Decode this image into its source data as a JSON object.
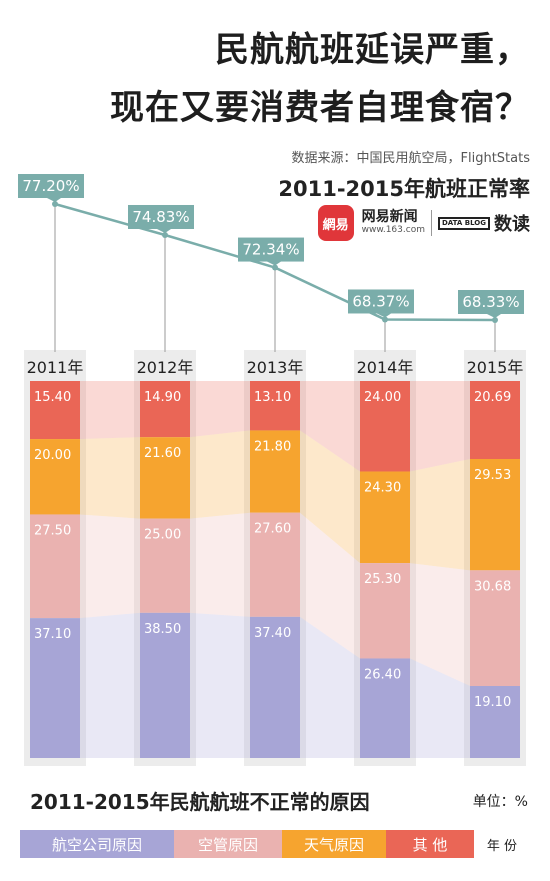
{
  "title_line1": "民航航班延误严重，",
  "title_line2": "现在又要消费者自理食宿？",
  "source": "数据来源：中国民用航空局，FlightStats",
  "subtitle": "2011-2015年航班正常率",
  "brand": {
    "logo": "網易",
    "name": "网易新闻",
    "url": "www.163.com",
    "datablog": "DATA BLOG",
    "column": "数读"
  },
  "footer_title": "2011-2015年民航航班不正常的原因",
  "unit": "单位：%",
  "legend": {
    "airline": "航空公司原因",
    "atc": "空管原因",
    "weather": "天气原因",
    "other": "其 他",
    "year": "年 份"
  },
  "colors": {
    "airline": "#a7a5d6",
    "atc": "#eab2b0",
    "weather": "#f6a42f",
    "other": "#ea6656",
    "teal": "#7aadaa",
    "column_bg": "#ececec"
  },
  "chart_data": [
    {
      "type": "line",
      "title": "2011-2015年航班正常率",
      "x": [
        "2011年",
        "2012年",
        "2013年",
        "2014年",
        "2015年"
      ],
      "y": [
        77.2,
        74.83,
        72.34,
        68.37,
        68.33
      ],
      "labels": [
        "77.20%",
        "74.83%",
        "72.34%",
        "68.37%",
        "68.33%"
      ]
    },
    {
      "type": "bar",
      "stacked": true,
      "title": "2011-2015年民航航班不正常的原因",
      "unit": "%",
      "categories": [
        "2011年",
        "2012年",
        "2013年",
        "2014年",
        "2015年"
      ],
      "series": [
        {
          "name": "其 他",
          "color": "#ea6656",
          "values": [
            15.4,
            14.9,
            13.1,
            24.0,
            20.69
          ],
          "labels": [
            "15.40",
            "14.90",
            "13.10",
            "24.00",
            "20.69"
          ]
        },
        {
          "name": "天气原因",
          "color": "#f6a42f",
          "values": [
            20.0,
            21.6,
            21.8,
            24.3,
            29.53
          ],
          "labels": [
            "20.00",
            "21.60",
            "21.80",
            "24.30",
            "29.53"
          ]
        },
        {
          "name": "空管原因",
          "color": "#eab2b0",
          "values": [
            27.5,
            25.0,
            27.6,
            25.3,
            30.68
          ],
          "labels": [
            "27.50",
            "25.00",
            "27.60",
            "25.30",
            "30.68"
          ]
        },
        {
          "name": "航空公司原因",
          "color": "#a7a5d6",
          "values": [
            37.1,
            38.5,
            37.4,
            26.4,
            19.1
          ],
          "labels": [
            "37.10",
            "38.50",
            "37.40",
            "26.40",
            "19.10"
          ]
        }
      ]
    }
  ]
}
